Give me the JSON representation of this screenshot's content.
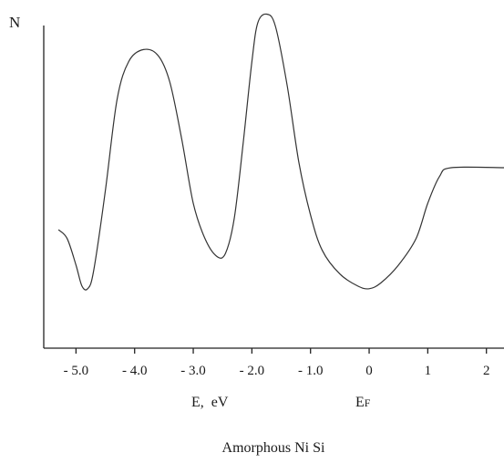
{
  "chart_data": {
    "type": "line",
    "title": "",
    "caption": "Amorphous Ni Si",
    "ylabel": "N",
    "xlabel": "E,  eV",
    "fermi_label": {
      "main": "E",
      "sub": "F"
    },
    "xlim": [
      -5.55,
      2.3
    ],
    "ylim": [
      0,
      1
    ],
    "grid": false,
    "x_ticks": [
      {
        "value": -5.0,
        "label": "- 5.0"
      },
      {
        "value": -4.0,
        "label": "- 4.0"
      },
      {
        "value": -3.0,
        "label": "- 3.0"
      },
      {
        "value": -2.0,
        "label": "- 2.0"
      },
      {
        "value": -1.0,
        "label": "- 1.0"
      },
      {
        "value": 0,
        "label": "0"
      },
      {
        "value": 1,
        "label": "1"
      },
      {
        "value": 2,
        "label": "2"
      }
    ],
    "series": [
      {
        "color": "#333333",
        "points": [
          [
            -5.3,
            0.29
          ],
          [
            -5.15,
            0.26
          ],
          [
            -5.0,
            0.17
          ],
          [
            -4.9,
            0.1
          ],
          [
            -4.8,
            0.09
          ],
          [
            -4.7,
            0.15
          ],
          [
            -4.5,
            0.42
          ],
          [
            -4.3,
            0.73
          ],
          [
            -4.1,
            0.86
          ],
          [
            -3.85,
            0.9
          ],
          [
            -3.6,
            0.88
          ],
          [
            -3.4,
            0.79
          ],
          [
            -3.2,
            0.6
          ],
          [
            -3.0,
            0.38
          ],
          [
            -2.8,
            0.26
          ],
          [
            -2.6,
            0.2
          ],
          [
            -2.45,
            0.21
          ],
          [
            -2.3,
            0.33
          ],
          [
            -2.15,
            0.58
          ],
          [
            -2.0,
            0.86
          ],
          [
            -1.9,
            0.99
          ],
          [
            -1.75,
            1.02
          ],
          [
            -1.6,
            0.98
          ],
          [
            -1.4,
            0.78
          ],
          [
            -1.2,
            0.52
          ],
          [
            -1.0,
            0.34
          ],
          [
            -0.8,
            0.22
          ],
          [
            -0.5,
            0.14
          ],
          [
            -0.2,
            0.1
          ],
          [
            0.0,
            0.09
          ],
          [
            0.2,
            0.11
          ],
          [
            0.5,
            0.17
          ],
          [
            0.8,
            0.26
          ],
          [
            1.0,
            0.38
          ],
          [
            1.2,
            0.47
          ],
          [
            1.4,
            0.5
          ],
          [
            2.3,
            0.5
          ]
        ]
      }
    ]
  }
}
